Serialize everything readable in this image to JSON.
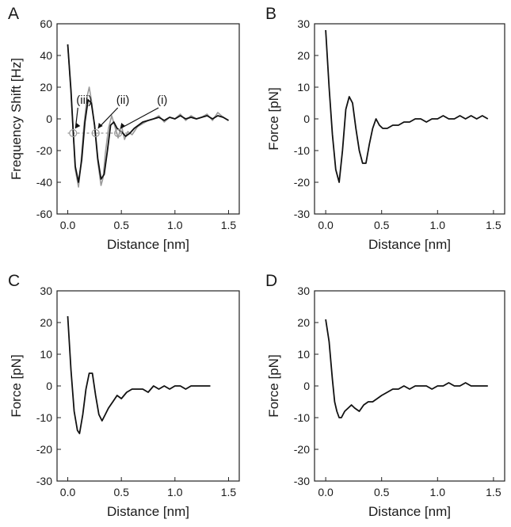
{
  "colors": {
    "black_trace": "#111111",
    "gray_trace": "#9a9a9a",
    "dashed": "#999999",
    "frame": "#222222"
  },
  "chart_data": [
    {
      "type": "line",
      "panel": "A",
      "xlabel": "Distance [nm]",
      "ylabel": "Frequency Shift [Hz]",
      "xlim": [
        -0.1,
        1.6
      ],
      "ylim": [
        -60,
        60
      ],
      "xticks": [
        0.0,
        0.5,
        1.0,
        1.5
      ],
      "xtick_labels": [
        "0.0",
        "0.5",
        "1.0",
        "1.5"
      ],
      "yticks": [
        -60,
        -40,
        -20,
        0,
        20,
        40,
        60
      ],
      "ytick_labels": [
        "-60",
        "-40",
        "-20",
        "0",
        "20",
        "40",
        "60"
      ],
      "grid": false,
      "series": [
        {
          "color": "gray",
          "x": [
            0.0,
            0.03,
            0.05,
            0.07,
            0.1,
            0.12,
            0.15,
            0.18,
            0.2,
            0.22,
            0.25,
            0.28,
            0.31,
            0.33,
            0.35,
            0.38,
            0.41,
            0.44,
            0.47,
            0.5,
            0.53,
            0.56,
            0.6,
            0.65,
            0.7,
            0.75,
            0.8,
            0.85,
            0.9,
            0.95,
            1.0,
            1.05,
            1.1,
            1.15,
            1.2,
            1.25,
            1.3,
            1.35,
            1.4,
            1.45,
            1.5
          ],
          "y": [
            47,
            16,
            -8,
            -32,
            -43,
            -30,
            -5,
            14,
            20,
            12,
            -5,
            -27,
            -42,
            -37,
            -22,
            -6,
            2,
            -5,
            -12,
            -4,
            -13,
            -8,
            -10,
            -5,
            -3,
            -1,
            0,
            2,
            -2,
            1,
            0,
            3,
            -1,
            2,
            0,
            1,
            3,
            -1,
            4,
            1,
            -1
          ]
        },
        {
          "color": "black",
          "x": [
            0.0,
            0.03,
            0.05,
            0.07,
            0.1,
            0.13,
            0.16,
            0.19,
            0.22,
            0.25,
            0.28,
            0.31,
            0.34,
            0.37,
            0.4,
            0.43,
            0.46,
            0.5,
            0.54,
            0.58,
            0.62,
            0.66,
            0.7,
            0.75,
            0.8,
            0.85,
            0.9,
            0.95,
            1.0,
            1.05,
            1.1,
            1.15,
            1.2,
            1.25,
            1.3,
            1.35,
            1.4,
            1.45,
            1.5
          ],
          "y": [
            47,
            18,
            -7,
            -30,
            -40,
            -26,
            -2,
            12,
            10,
            -4,
            -25,
            -38,
            -35,
            -20,
            -4,
            -2,
            -6,
            -8,
            -11,
            -9,
            -6,
            -4,
            -2,
            -1,
            0,
            1,
            -1,
            1,
            0,
            2,
            0,
            1,
            0,
            1,
            2,
            0,
            2,
            1,
            -1
          ]
        }
      ],
      "reference_y": -9,
      "annotations": [
        {
          "text": "(iii)",
          "point": [
            0.05,
            -9
          ]
        },
        {
          "text": "(ii)",
          "point": [
            0.26,
            -9
          ]
        },
        {
          "text": "(i)",
          "point": [
            0.47,
            -9
          ]
        }
      ]
    },
    {
      "type": "line",
      "panel": "B",
      "xlabel": "Distance [nm]",
      "ylabel": "Force [pN]",
      "xlim": [
        -0.1,
        1.6
      ],
      "ylim": [
        -30,
        30
      ],
      "xticks": [
        0.0,
        0.5,
        1.0,
        1.5
      ],
      "xtick_labels": [
        "0.0",
        "0.5",
        "1.0",
        "1.5"
      ],
      "yticks": [
        -30,
        -20,
        -10,
        0,
        10,
        20,
        30
      ],
      "ytick_labels": [
        "-30",
        "-20",
        "-10",
        "0",
        "10",
        "20",
        "30"
      ],
      "grid": false,
      "series": [
        {
          "color": "black",
          "x": [
            0.0,
            0.03,
            0.06,
            0.09,
            0.12,
            0.15,
            0.18,
            0.21,
            0.24,
            0.27,
            0.3,
            0.33,
            0.36,
            0.39,
            0.42,
            0.45,
            0.48,
            0.51,
            0.55,
            0.6,
            0.65,
            0.7,
            0.75,
            0.8,
            0.85,
            0.9,
            0.95,
            1.0,
            1.05,
            1.1,
            1.15,
            1.2,
            1.25,
            1.3,
            1.35,
            1.4,
            1.45
          ],
          "y": [
            28,
            10,
            -5,
            -16,
            -20,
            -10,
            3,
            7,
            5,
            -3,
            -10,
            -14,
            -14,
            -8,
            -3,
            0,
            -2,
            -3,
            -3,
            -2,
            -2,
            -1,
            -1,
            0,
            0,
            -1,
            0,
            0,
            1,
            0,
            0,
            1,
            0,
            1,
            0,
            1,
            0
          ]
        }
      ]
    },
    {
      "type": "line",
      "panel": "C",
      "xlabel": "Distance [nm]",
      "ylabel": "Force [pN]",
      "xlim": [
        -0.1,
        1.6
      ],
      "ylim": [
        -30,
        30
      ],
      "xticks": [
        0.0,
        0.5,
        1.0,
        1.5
      ],
      "xtick_labels": [
        "0.0",
        "0.5",
        "1.0",
        "1.5"
      ],
      "yticks": [
        -30,
        -20,
        -10,
        0,
        10,
        20,
        30
      ],
      "ytick_labels": [
        "-30",
        "-20",
        "-10",
        "0",
        "10",
        "20",
        "30"
      ],
      "grid": false,
      "series": [
        {
          "color": "black",
          "x": [
            0.0,
            0.03,
            0.06,
            0.09,
            0.11,
            0.14,
            0.17,
            0.2,
            0.23,
            0.26,
            0.29,
            0.32,
            0.35,
            0.38,
            0.42,
            0.46,
            0.5,
            0.55,
            0.6,
            0.65,
            0.7,
            0.75,
            0.8,
            0.85,
            0.9,
            0.95,
            1.0,
            1.05,
            1.1,
            1.15,
            1.2,
            1.25,
            1.3,
            1.33
          ],
          "y": [
            22,
            5,
            -8,
            -14,
            -15,
            -9,
            -1,
            4,
            4,
            -3,
            -9,
            -11,
            -9,
            -7,
            -5,
            -3,
            -4,
            -2,
            -1,
            -1,
            -1,
            -2,
            0,
            -1,
            0,
            -1,
            0,
            0,
            -1,
            0,
            0,
            0,
            0,
            0
          ]
        }
      ]
    },
    {
      "type": "line",
      "panel": "D",
      "xlabel": "Distance [nm]",
      "ylabel": "Force [pN]",
      "xlim": [
        -0.1,
        1.6
      ],
      "ylim": [
        -30,
        30
      ],
      "xticks": [
        0.0,
        0.5,
        1.0,
        1.5
      ],
      "xtick_labels": [
        "0.0",
        "0.5",
        "1.0",
        "1.5"
      ],
      "yticks": [
        -30,
        -20,
        -10,
        0,
        10,
        20,
        30
      ],
      "ytick_labels": [
        "-30",
        "-20",
        "-10",
        "0",
        "10",
        "20",
        "30"
      ],
      "grid": false,
      "series": [
        {
          "color": "black",
          "x": [
            0.0,
            0.03,
            0.06,
            0.08,
            0.1,
            0.12,
            0.14,
            0.17,
            0.2,
            0.23,
            0.26,
            0.3,
            0.34,
            0.38,
            0.42,
            0.46,
            0.5,
            0.55,
            0.6,
            0.65,
            0.7,
            0.75,
            0.8,
            0.85,
            0.9,
            0.95,
            1.0,
            1.05,
            1.1,
            1.15,
            1.2,
            1.25,
            1.3,
            1.35,
            1.4,
            1.45
          ],
          "y": [
            21,
            14,
            2,
            -5,
            -8,
            -10,
            -10,
            -8,
            -7,
            -6,
            -7,
            -8,
            -6,
            -5,
            -5,
            -4,
            -3,
            -2,
            -1,
            -1,
            0,
            -1,
            0,
            0,
            0,
            -1,
            0,
            0,
            1,
            0,
            0,
            1,
            0,
            0,
            0,
            0
          ]
        }
      ]
    }
  ]
}
